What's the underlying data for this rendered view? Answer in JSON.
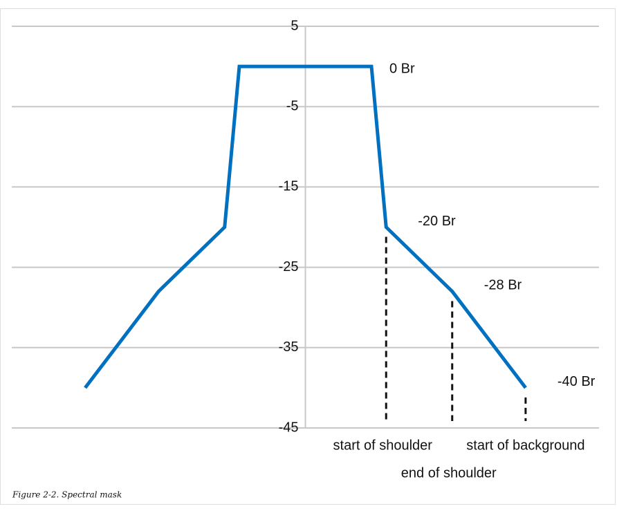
{
  "chart_data": {
    "type": "line",
    "caption": "Figure 2-2. Spectral mask",
    "x": [
      -30,
      -20,
      -11,
      -9,
      9,
      11,
      20,
      30
    ],
    "series": [
      {
        "color": "#0070c0",
        "values": [
          -40,
          -28,
          -20,
          0,
          0,
          -20,
          -28,
          -40
        ]
      }
    ],
    "point_labels": [
      null,
      null,
      null,
      null,
      "0 Br",
      "-20 Br",
      "-28 Br",
      "-40 Br"
    ],
    "markers": [
      {
        "point": 5,
        "label": "start of shoulder"
      },
      {
        "point": 6,
        "label": "end of shoulder"
      },
      {
        "point": 7,
        "label": "start of background"
      }
    ],
    "xlim": [
      -40,
      40
    ],
    "ylim": [
      -45,
      5
    ],
    "yticks": [
      5,
      -5,
      -15,
      -25,
      -35,
      -45
    ],
    "grid": true
  }
}
